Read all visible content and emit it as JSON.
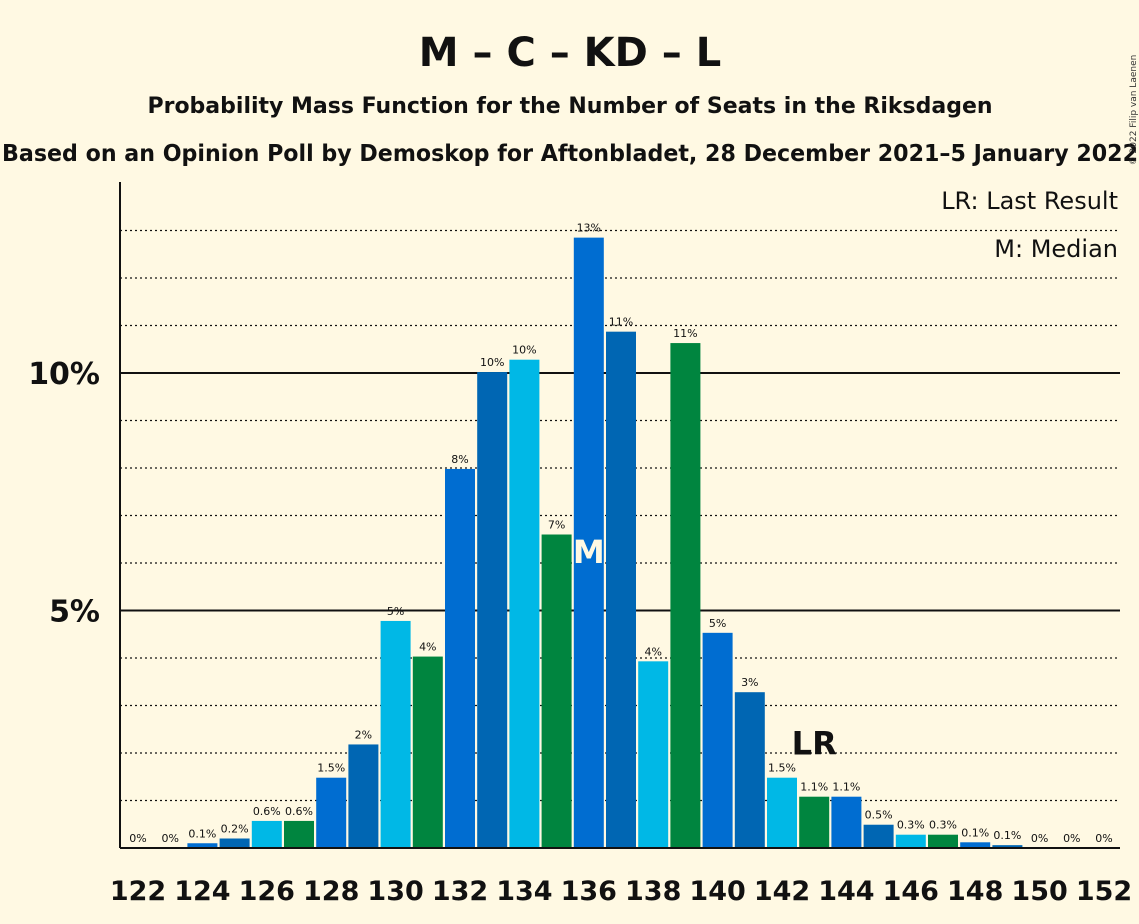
{
  "chart_data": {
    "type": "bar",
    "title": "M – C – KD – L",
    "subtitle": "Probability Mass Function for the Number of Seats in the Riksdagen",
    "subtitle2": "Based on an Opinion Poll by Demoskop for Aftonbladet, 28 December 2021–5 January 2022",
    "copyright": "© 2022 Filip van Laenen",
    "legend": [
      "LR: Last Result",
      "M: Median"
    ],
    "y_ticks": [
      {
        "value": 5,
        "label": "5%"
      },
      {
        "value": 10,
        "label": "10%"
      }
    ],
    "ylim": [
      0,
      14
    ],
    "x_tick_labels": [
      "122",
      "124",
      "126",
      "128",
      "130",
      "132",
      "134",
      "136",
      "138",
      "140",
      "142",
      "144",
      "146",
      "148",
      "150",
      "152"
    ],
    "median_seat": 136,
    "median_label": "M",
    "last_result_seat": 143,
    "last_result_label": "LR",
    "colors": [
      "#00B8E6",
      "#00853F",
      "#006DD1",
      "#0066B3"
    ],
    "bars": [
      {
        "seat": 122,
        "value": 0,
        "label": "0%"
      },
      {
        "seat": 123,
        "value": 0,
        "label": "0%"
      },
      {
        "seat": 124,
        "value": 0.1,
        "label": "0.1%"
      },
      {
        "seat": 125,
        "value": 0.2,
        "label": "0.2%"
      },
      {
        "seat": 126,
        "value": 0.57,
        "label": "0.6%"
      },
      {
        "seat": 127,
        "value": 0.57,
        "label": "0.6%"
      },
      {
        "seat": 128,
        "value": 1.48,
        "label": "1.5%"
      },
      {
        "seat": 129,
        "value": 2.18,
        "label": "2%"
      },
      {
        "seat": 130,
        "value": 4.78,
        "label": "5%"
      },
      {
        "seat": 131,
        "value": 4.03,
        "label": "4%"
      },
      {
        "seat": 132,
        "value": 7.98,
        "label": "8%"
      },
      {
        "seat": 133,
        "value": 10.02,
        "label": "10%"
      },
      {
        "seat": 134,
        "value": 10.28,
        "label": "10%"
      },
      {
        "seat": 135,
        "value": 6.6,
        "label": "7%"
      },
      {
        "seat": 136,
        "value": 12.85,
        "label": "13%"
      },
      {
        "seat": 137,
        "value": 10.87,
        "label": "11%"
      },
      {
        "seat": 138,
        "value": 3.93,
        "label": "4%"
      },
      {
        "seat": 139,
        "value": 10.63,
        "label": "11%"
      },
      {
        "seat": 140,
        "value": 4.53,
        "label": "5%"
      },
      {
        "seat": 141,
        "value": 3.28,
        "label": "3%"
      },
      {
        "seat": 142,
        "value": 1.48,
        "label": "1.5%"
      },
      {
        "seat": 143,
        "value": 1.08,
        "label": "1.1%"
      },
      {
        "seat": 144,
        "value": 1.08,
        "label": "1.1%"
      },
      {
        "seat": 145,
        "value": 0.49,
        "label": "0.5%"
      },
      {
        "seat": 146,
        "value": 0.28,
        "label": "0.3%"
      },
      {
        "seat": 147,
        "value": 0.28,
        "label": "0.3%"
      },
      {
        "seat": 148,
        "value": 0.12,
        "label": "0.1%"
      },
      {
        "seat": 149,
        "value": 0.06,
        "label": "0.1%"
      },
      {
        "seat": 150,
        "value": 0,
        "label": "0%"
      },
      {
        "seat": 151,
        "value": 0,
        "label": "0%"
      },
      {
        "seat": 152,
        "value": 0,
        "label": "0%"
      }
    ]
  }
}
